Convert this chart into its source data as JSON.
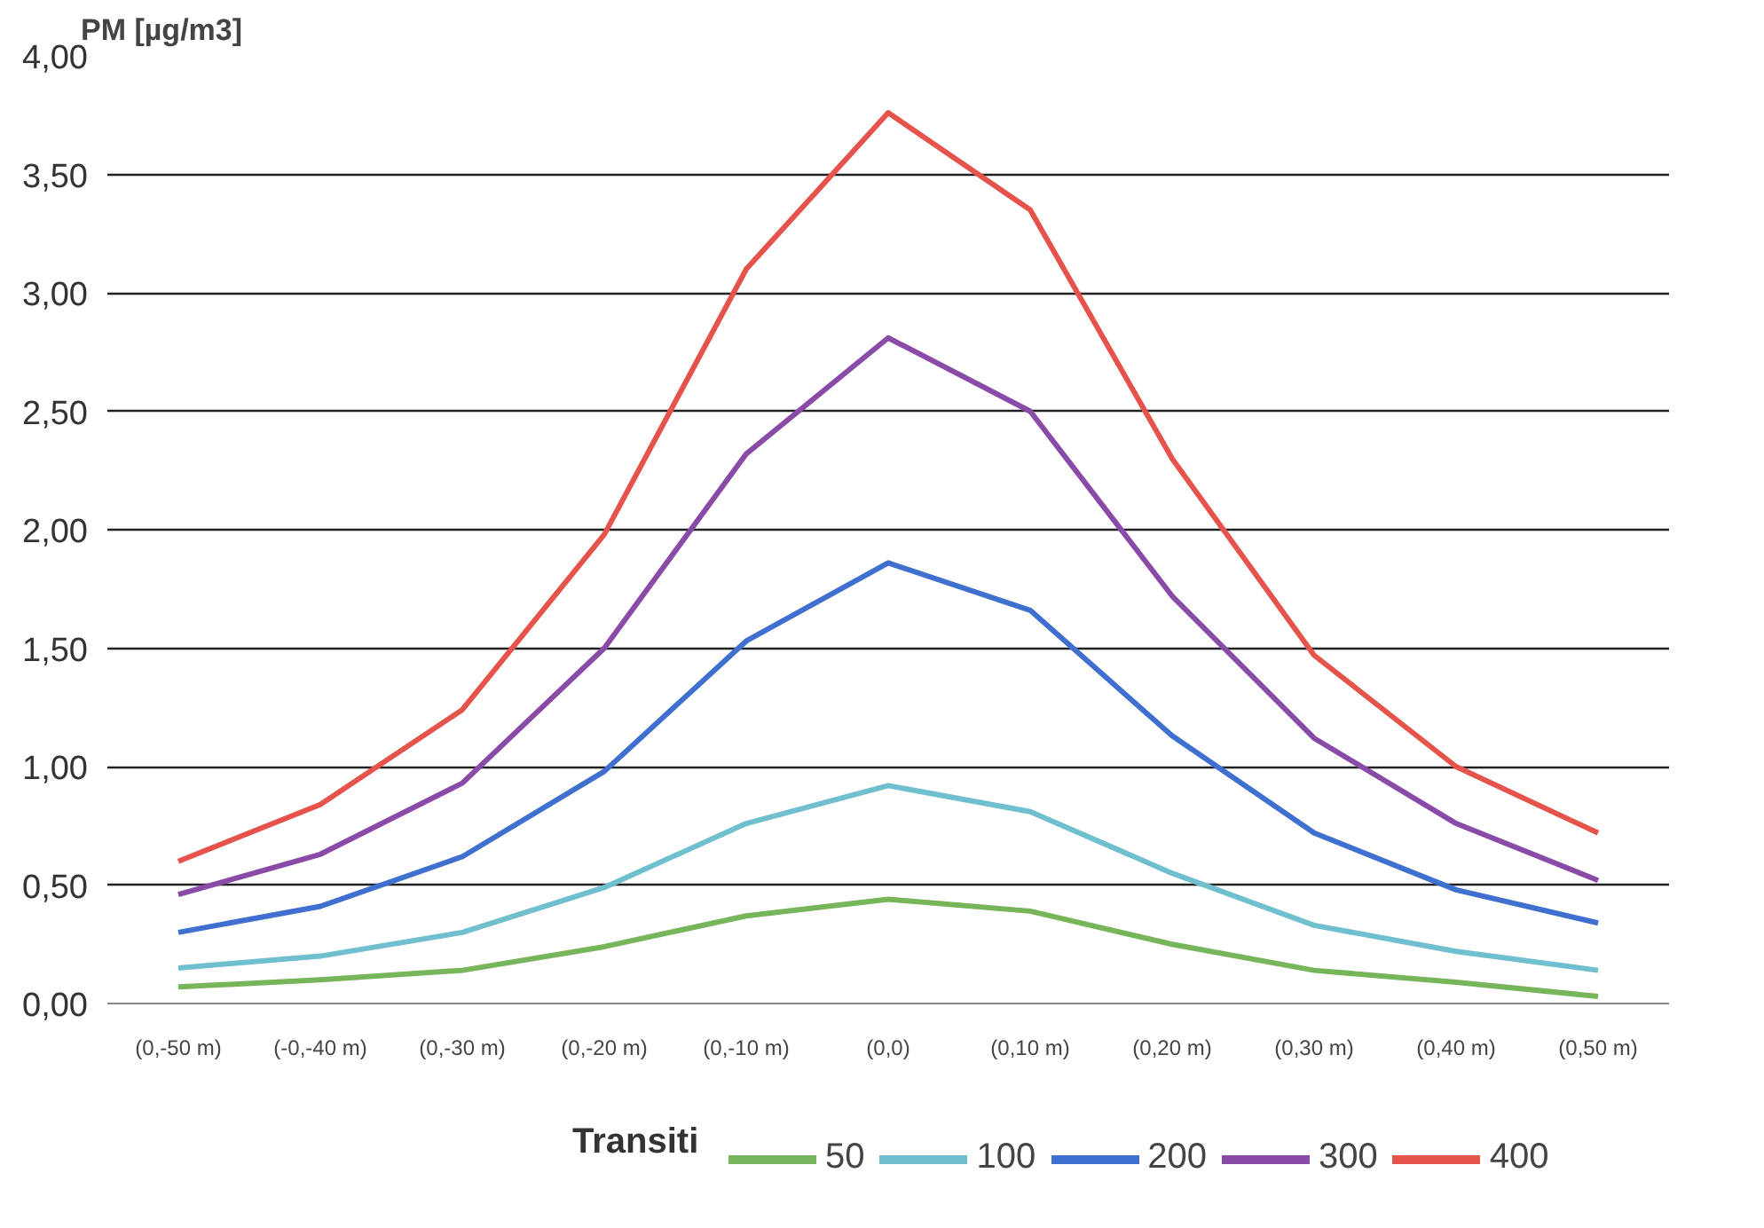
{
  "chart_data": {
    "type": "line",
    "ylabel": "PM [µg/m3]",
    "legend_title": "Transiti",
    "categories": [
      "(0,-50 m)",
      "(-0,-40 m)",
      "(0,-30 m)",
      "(0,-20 m)",
      "(0,-10 m)",
      "(0,0)",
      "(0,10 m)",
      "(0,20 m)",
      "(0,30 m)",
      "(0,40 m)",
      "(0,50 m)"
    ],
    "series": [
      {
        "name": "50",
        "color": "#77b55a",
        "values": [
          0.07,
          0.1,
          0.14,
          0.24,
          0.37,
          0.44,
          0.39,
          0.25,
          0.14,
          0.09,
          0.03
        ]
      },
      {
        "name": "100",
        "color": "#6fbfcf",
        "values": [
          0.15,
          0.2,
          0.3,
          0.49,
          0.76,
          0.92,
          0.81,
          0.55,
          0.33,
          0.22,
          0.14
        ]
      },
      {
        "name": "200",
        "color": "#3f6fcf",
        "values": [
          0.3,
          0.41,
          0.62,
          0.98,
          1.53,
          1.86,
          1.66,
          1.13,
          0.72,
          0.48,
          0.34
        ]
      },
      {
        "name": "300",
        "color": "#8a4aa8",
        "values": [
          0.46,
          0.63,
          0.93,
          1.5,
          2.32,
          2.81,
          2.5,
          1.72,
          1.12,
          0.76,
          0.52
        ]
      },
      {
        "name": "400",
        "color": "#e5534b",
        "values": [
          0.6,
          0.84,
          1.24,
          1.98,
          3.1,
          3.76,
          3.35,
          2.3,
          1.47,
          1.0,
          0.72
        ]
      }
    ],
    "ylim": [
      0,
      4
    ],
    "yticks": [
      {
        "value": 0,
        "label": "0,00"
      },
      {
        "value": 0.5,
        "label": "0,50"
      },
      {
        "value": 1,
        "label": "1,00"
      },
      {
        "value": 1.5,
        "label": "1,50"
      },
      {
        "value": 2,
        "label": "2,00"
      },
      {
        "value": 2.5,
        "label": "2,50"
      },
      {
        "value": 3,
        "label": "3,00"
      },
      {
        "value": 3.5,
        "label": "3,50"
      },
      {
        "value": 4,
        "label": "4,00"
      }
    ],
    "grid": "y",
    "legend": "bottom",
    "marker": "none",
    "line_style": "solid"
  }
}
